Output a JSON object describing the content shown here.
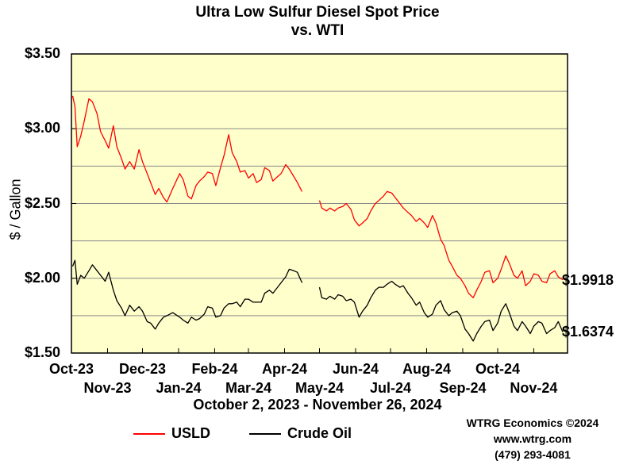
{
  "chart_data": {
    "type": "line",
    "title": "Ultra Low Sulfur Diesel Spot Price",
    "subtitle": "vs. WTI",
    "xlabel": "October 2, 2023 - November 26, 2024",
    "ylabel": "$ / Gallon",
    "ylim": [
      1.5,
      3.5
    ],
    "yticks": [
      "$3.50",
      "$3.00",
      "$2.50",
      "$2.00",
      "$1.50"
    ],
    "ytick_values": [
      3.5,
      3.0,
      2.5,
      2.0,
      1.5
    ],
    "xticks_top": [
      "Oct-23",
      "Dec-23",
      "Feb-24",
      "Apr-24",
      "Jun-24",
      "Aug-24",
      "Oct-24"
    ],
    "xticks_bottom": [
      "Nov-23",
      "Jan-24",
      "Mar-24",
      "May-24",
      "Jul-24",
      "Sep-24",
      "Nov-24"
    ],
    "grid": true,
    "legend_position": "bottom-left",
    "series": [
      {
        "name": "USLD",
        "color": "#ff0000",
        "end_label": "$1.9918",
        "points": [
          [
            "2023-10-02",
            3.22
          ],
          [
            "2023-10-04",
            3.15
          ],
          [
            "2023-10-06",
            2.88
          ],
          [
            "2023-10-09",
            2.95
          ],
          [
            "2023-10-12",
            3.05
          ],
          [
            "2023-10-16",
            3.2
          ],
          [
            "2023-10-19",
            3.18
          ],
          [
            "2023-10-23",
            3.1
          ],
          [
            "2023-10-26",
            2.98
          ],
          [
            "2023-10-30",
            2.92
          ],
          [
            "2023-11-02",
            2.87
          ],
          [
            "2023-11-06",
            3.02
          ],
          [
            "2023-11-09",
            2.88
          ],
          [
            "2023-11-13",
            2.8
          ],
          [
            "2023-11-16",
            2.73
          ],
          [
            "2023-11-20",
            2.78
          ],
          [
            "2023-11-24",
            2.73
          ],
          [
            "2023-11-28",
            2.86
          ],
          [
            "2023-12-01",
            2.78
          ],
          [
            "2023-12-05",
            2.7
          ],
          [
            "2023-12-08",
            2.64
          ],
          [
            "2023-12-12",
            2.56
          ],
          [
            "2023-12-15",
            2.6
          ],
          [
            "2023-12-19",
            2.54
          ],
          [
            "2023-12-22",
            2.51
          ],
          [
            "2023-12-27",
            2.6
          ],
          [
            "2024-01-02",
            2.7
          ],
          [
            "2024-01-05",
            2.66
          ],
          [
            "2024-01-09",
            2.55
          ],
          [
            "2024-01-12",
            2.53
          ],
          [
            "2024-01-16",
            2.62
          ],
          [
            "2024-01-19",
            2.65
          ],
          [
            "2024-01-23",
            2.68
          ],
          [
            "2024-01-26",
            2.71
          ],
          [
            "2024-01-30",
            2.7
          ],
          [
            "2024-02-02",
            2.62
          ],
          [
            "2024-02-06",
            2.74
          ],
          [
            "2024-02-09",
            2.82
          ],
          [
            "2024-02-13",
            2.96
          ],
          [
            "2024-02-16",
            2.84
          ],
          [
            "2024-02-20",
            2.78
          ],
          [
            "2024-02-23",
            2.71
          ],
          [
            "2024-02-27",
            2.72
          ],
          [
            "2024-03-01",
            2.67
          ],
          [
            "2024-03-05",
            2.7
          ],
          [
            "2024-03-08",
            2.64
          ],
          [
            "2024-03-12",
            2.66
          ],
          [
            "2024-03-15",
            2.74
          ],
          [
            "2024-03-19",
            2.72
          ],
          [
            "2024-03-22",
            2.65
          ],
          [
            "2024-03-26",
            2.68
          ],
          [
            "2024-03-29",
            2.7
          ],
          [
            "2024-04-02",
            2.76
          ],
          [
            "2024-04-05",
            2.73
          ],
          [
            "2024-04-09",
            2.68
          ],
          [
            "2024-04-12",
            2.64
          ],
          [
            "2024-04-16",
            2.58
          ],
          null,
          [
            "2024-05-01",
            2.52
          ],
          [
            "2024-05-03",
            2.47
          ],
          [
            "2024-05-07",
            2.45
          ],
          [
            "2024-05-10",
            2.47
          ],
          [
            "2024-05-14",
            2.45
          ],
          [
            "2024-05-17",
            2.47
          ],
          [
            "2024-05-21",
            2.48
          ],
          [
            "2024-05-24",
            2.5
          ],
          [
            "2024-05-28",
            2.46
          ],
          [
            "2024-05-31",
            2.39
          ],
          [
            "2024-06-04",
            2.35
          ],
          [
            "2024-06-07",
            2.37
          ],
          [
            "2024-06-11",
            2.4
          ],
          [
            "2024-06-14",
            2.45
          ],
          [
            "2024-06-18",
            2.5
          ],
          [
            "2024-06-21",
            2.52
          ],
          [
            "2024-06-25",
            2.55
          ],
          [
            "2024-06-28",
            2.58
          ],
          [
            "2024-07-02",
            2.57
          ],
          [
            "2024-07-05",
            2.54
          ],
          [
            "2024-07-09",
            2.5
          ],
          [
            "2024-07-12",
            2.47
          ],
          [
            "2024-07-16",
            2.44
          ],
          [
            "2024-07-19",
            2.42
          ],
          [
            "2024-07-23",
            2.38
          ],
          [
            "2024-07-26",
            2.4
          ],
          [
            "2024-07-30",
            2.37
          ],
          [
            "2024-08-02",
            2.34
          ],
          [
            "2024-08-06",
            2.42
          ],
          [
            "2024-08-09",
            2.37
          ],
          [
            "2024-08-13",
            2.26
          ],
          [
            "2024-08-16",
            2.22
          ],
          [
            "2024-08-20",
            2.12
          ],
          [
            "2024-08-23",
            2.08
          ],
          [
            "2024-08-27",
            2.02
          ],
          [
            "2024-08-30",
            2.0
          ],
          [
            "2024-09-03",
            1.95
          ],
          [
            "2024-09-06",
            1.9
          ],
          [
            "2024-09-10",
            1.87
          ],
          [
            "2024-09-13",
            1.92
          ],
          [
            "2024-09-17",
            1.98
          ],
          [
            "2024-09-20",
            2.04
          ],
          [
            "2024-09-24",
            2.05
          ],
          [
            "2024-09-27",
            1.97
          ],
          [
            "2024-10-01",
            2.0
          ],
          [
            "2024-10-04",
            2.06
          ],
          [
            "2024-10-08",
            2.15
          ],
          [
            "2024-10-11",
            2.1
          ],
          [
            "2024-10-15",
            2.02
          ],
          [
            "2024-10-18",
            2.0
          ],
          [
            "2024-10-22",
            2.05
          ],
          [
            "2024-10-25",
            1.95
          ],
          [
            "2024-10-29",
            1.98
          ],
          [
            "2024-11-01",
            2.03
          ],
          [
            "2024-11-05",
            2.02
          ],
          [
            "2024-11-08",
            1.98
          ],
          [
            "2024-11-12",
            1.97
          ],
          [
            "2024-11-15",
            2.03
          ],
          [
            "2024-11-19",
            2.05
          ],
          [
            "2024-11-22",
            2.01
          ],
          [
            "2024-11-26",
            1.99
          ]
        ]
      },
      {
        "name": "Crude Oil",
        "color": "#000000",
        "end_label": "$1.6374",
        "points": [
          [
            "2023-10-02",
            2.08
          ],
          [
            "2023-10-04",
            2.12
          ],
          [
            "2023-10-06",
            1.96
          ],
          [
            "2023-10-09",
            2.02
          ],
          [
            "2023-10-12",
            2.0
          ],
          [
            "2023-10-16",
            2.05
          ],
          [
            "2023-10-19",
            2.09
          ],
          [
            "2023-10-23",
            2.05
          ],
          [
            "2023-10-26",
            2.02
          ],
          [
            "2023-10-30",
            1.98
          ],
          [
            "2023-11-02",
            2.04
          ],
          [
            "2023-11-06",
            1.92
          ],
          [
            "2023-11-09",
            1.85
          ],
          [
            "2023-11-13",
            1.8
          ],
          [
            "2023-11-16",
            1.75
          ],
          [
            "2023-11-20",
            1.82
          ],
          [
            "2023-11-24",
            1.78
          ],
          [
            "2023-11-28",
            1.81
          ],
          [
            "2023-12-01",
            1.78
          ],
          [
            "2023-12-05",
            1.71
          ],
          [
            "2023-12-08",
            1.7
          ],
          [
            "2023-12-12",
            1.66
          ],
          [
            "2023-12-15",
            1.7
          ],
          [
            "2023-12-19",
            1.74
          ],
          [
            "2023-12-22",
            1.75
          ],
          [
            "2023-12-27",
            1.77
          ],
          [
            "2024-01-02",
            1.74
          ],
          [
            "2024-01-05",
            1.72
          ],
          [
            "2024-01-09",
            1.7
          ],
          [
            "2024-01-12",
            1.74
          ],
          [
            "2024-01-16",
            1.72
          ],
          [
            "2024-01-19",
            1.73
          ],
          [
            "2024-01-23",
            1.76
          ],
          [
            "2024-01-26",
            1.81
          ],
          [
            "2024-01-30",
            1.8
          ],
          [
            "2024-02-02",
            1.74
          ],
          [
            "2024-02-06",
            1.75
          ],
          [
            "2024-02-09",
            1.8
          ],
          [
            "2024-02-13",
            1.83
          ],
          [
            "2024-02-16",
            1.83
          ],
          [
            "2024-02-20",
            1.84
          ],
          [
            "2024-02-23",
            1.81
          ],
          [
            "2024-02-27",
            1.86
          ],
          [
            "2024-03-01",
            1.86
          ],
          [
            "2024-03-05",
            1.84
          ],
          [
            "2024-03-08",
            1.84
          ],
          [
            "2024-03-12",
            1.84
          ],
          [
            "2024-03-15",
            1.9
          ],
          [
            "2024-03-19",
            1.92
          ],
          [
            "2024-03-22",
            1.9
          ],
          [
            "2024-03-26",
            1.94
          ],
          [
            "2024-03-29",
            1.97
          ],
          [
            "2024-04-02",
            2.01
          ],
          [
            "2024-04-05",
            2.06
          ],
          [
            "2024-04-09",
            2.05
          ],
          [
            "2024-04-12",
            2.04
          ],
          [
            "2024-04-16",
            1.97
          ],
          null,
          [
            "2024-05-01",
            1.94
          ],
          [
            "2024-05-03",
            1.87
          ],
          [
            "2024-05-07",
            1.86
          ],
          [
            "2024-05-10",
            1.88
          ],
          [
            "2024-05-14",
            1.86
          ],
          [
            "2024-05-17",
            1.89
          ],
          [
            "2024-05-21",
            1.88
          ],
          [
            "2024-05-24",
            1.85
          ],
          [
            "2024-05-28",
            1.86
          ],
          [
            "2024-05-31",
            1.84
          ],
          [
            "2024-06-04",
            1.74
          ],
          [
            "2024-06-07",
            1.78
          ],
          [
            "2024-06-11",
            1.82
          ],
          [
            "2024-06-14",
            1.87
          ],
          [
            "2024-06-18",
            1.92
          ],
          [
            "2024-06-21",
            1.94
          ],
          [
            "2024-06-25",
            1.94
          ],
          [
            "2024-06-28",
            1.96
          ],
          [
            "2024-07-02",
            1.98
          ],
          [
            "2024-07-05",
            1.96
          ],
          [
            "2024-07-09",
            1.94
          ],
          [
            "2024-07-12",
            1.95
          ],
          [
            "2024-07-16",
            1.9
          ],
          [
            "2024-07-19",
            1.87
          ],
          [
            "2024-07-23",
            1.82
          ],
          [
            "2024-07-26",
            1.84
          ],
          [
            "2024-07-30",
            1.77
          ],
          [
            "2024-08-02",
            1.74
          ],
          [
            "2024-08-06",
            1.76
          ],
          [
            "2024-08-09",
            1.82
          ],
          [
            "2024-08-13",
            1.85
          ],
          [
            "2024-08-16",
            1.79
          ],
          [
            "2024-08-20",
            1.75
          ],
          [
            "2024-08-23",
            1.77
          ],
          [
            "2024-08-27",
            1.78
          ],
          [
            "2024-08-30",
            1.75
          ],
          [
            "2024-09-03",
            1.66
          ],
          [
            "2024-09-06",
            1.63
          ],
          [
            "2024-09-10",
            1.58
          ],
          [
            "2024-09-13",
            1.63
          ],
          [
            "2024-09-17",
            1.68
          ],
          [
            "2024-09-20",
            1.71
          ],
          [
            "2024-09-24",
            1.72
          ],
          [
            "2024-09-27",
            1.65
          ],
          [
            "2024-10-01",
            1.7
          ],
          [
            "2024-10-04",
            1.78
          ],
          [
            "2024-10-08",
            1.83
          ],
          [
            "2024-10-11",
            1.77
          ],
          [
            "2024-10-15",
            1.68
          ],
          [
            "2024-10-18",
            1.65
          ],
          [
            "2024-10-22",
            1.71
          ],
          [
            "2024-10-25",
            1.68
          ],
          [
            "2024-10-29",
            1.63
          ],
          [
            "2024-11-01",
            1.68
          ],
          [
            "2024-11-05",
            1.71
          ],
          [
            "2024-11-08",
            1.7
          ],
          [
            "2024-11-12",
            1.63
          ],
          [
            "2024-11-15",
            1.65
          ],
          [
            "2024-11-19",
            1.67
          ],
          [
            "2024-11-22",
            1.71
          ],
          [
            "2024-11-26",
            1.64
          ]
        ]
      }
    ]
  },
  "credits": {
    "line1": "WTRG Economics ©2024",
    "line2": "www.wtrg.com",
    "line3": "(479) 293-4081"
  }
}
